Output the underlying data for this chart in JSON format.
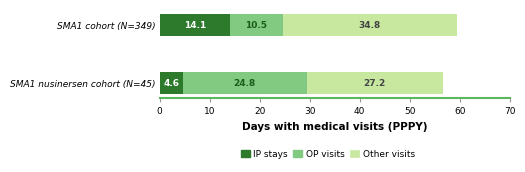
{
  "categories": [
    "SMA1 nusinersen cohort (N=45)",
    "SMA1 cohort (N=349)"
  ],
  "ip_stays": [
    4.6,
    14.1
  ],
  "op_visits": [
    24.8,
    10.5
  ],
  "other_visits": [
    27.2,
    34.8
  ],
  "ip_color": "#2d7a2d",
  "op_color": "#82c982",
  "other_color": "#c8e8a0",
  "xlabel": "Days with medical visits (PPPY)",
  "xlim": [
    0,
    70
  ],
  "xticks": [
    0,
    10,
    20,
    30,
    40,
    50,
    60,
    70
  ],
  "legend_labels": [
    "IP stays",
    "OP visits",
    "Other visits"
  ],
  "bar_height": 0.38,
  "label_fontsize": 6.5,
  "tick_fontsize": 6.5,
  "xlabel_fontsize": 7.5,
  "legend_fontsize": 6.5,
  "background_color": "#ffffff",
  "ip_label_color": "#ffffff",
  "other_label_color": "#555555",
  "bottom_spine_color": "#5cb85c"
}
